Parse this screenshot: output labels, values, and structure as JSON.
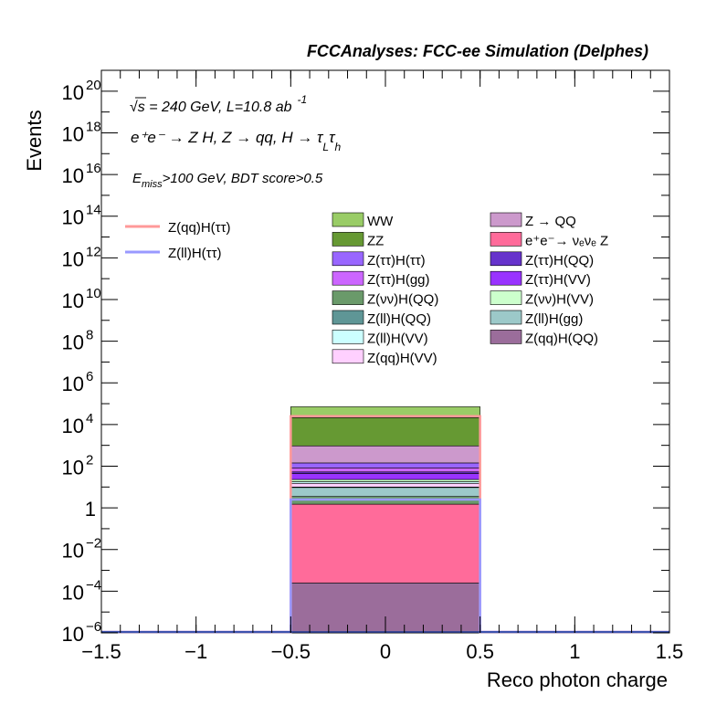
{
  "header": "FCCAnalyses: FCC-ee Simulation (Delphes)",
  "annotations": {
    "energy_lumi": "√s = 240 GeV, L=10.8 ab",
    "lumi_exp": "-1",
    "process_main": "e⁺e⁻ → Z H, Z → qq, H → τ",
    "tau_sub_l": "L",
    "tau_char": "τ",
    "tau_sub_h": "h",
    "cut_e": "E",
    "cut_sub": "miss",
    "cut_rest": ">100 GeV, BDT score>0.5"
  },
  "chart_data": {
    "type": "bar",
    "title": "",
    "xlabel": "Reco photon charge",
    "ylabel": "Events",
    "xlim": [
      -1.5,
      1.5
    ],
    "ylim": [
      1e-06,
      1e+21
    ],
    "yscale": "log",
    "x_ticks": [
      {
        "v": -1.5,
        "label": "−1.5"
      },
      {
        "v": -1,
        "label": "−1"
      },
      {
        "v": -0.5,
        "label": "−0.5"
      },
      {
        "v": 0,
        "label": "0"
      },
      {
        "v": 0.5,
        "label": "0.5"
      },
      {
        "v": 1,
        "label": "1"
      },
      {
        "v": 1.5,
        "label": "1.5"
      }
    ],
    "y_ticks": [
      {
        "exp": -6,
        "base": "10",
        "sup": "−6"
      },
      {
        "exp": -4,
        "base": "10",
        "sup": "−4"
      },
      {
        "exp": -2,
        "base": "10",
        "sup": "−2"
      },
      {
        "exp": 0,
        "base": "1",
        "sup": ""
      },
      {
        "exp": 2,
        "base": "10",
        "sup": "2"
      },
      {
        "exp": 4,
        "base": "10",
        "sup": "4"
      },
      {
        "exp": 6,
        "base": "10",
        "sup": "6"
      },
      {
        "exp": 8,
        "base": "10",
        "sup": "8"
      },
      {
        "exp": 10,
        "base": "10",
        "sup": "10"
      },
      {
        "exp": 12,
        "base": "10",
        "sup": "12"
      },
      {
        "exp": 14,
        "base": "10",
        "sup": "14"
      },
      {
        "exp": 16,
        "base": "10",
        "sup": "16"
      },
      {
        "exp": 18,
        "base": "10",
        "sup": "18"
      },
      {
        "exp": 20,
        "base": "10",
        "sup": "20"
      }
    ],
    "bin": [
      -0.5,
      0.5
    ],
    "stack_bottom_to_top": [
      {
        "name": "Z(qq)H(QQ)",
        "color": "#9b6d9b",
        "value": 0.00025
      },
      {
        "name": "e⁺e⁻→ νₑνₑ Z",
        "color": "#ff6b9a",
        "value": 1.5
      },
      {
        "name": "Z(νν)H(QQ)",
        "color": "#6a9a6a",
        "value": 2.0
      },
      {
        "name": "Z(ll)H(gg)",
        "color": "#9cc9c9",
        "value": 6.0
      },
      {
        "name": "Z(ll)H(QQ)",
        "color": "#5f9696",
        "value": 0.5
      },
      {
        "name": "Z(qq)H(VV)",
        "color": "#ffd0ff",
        "value": 5.0
      },
      {
        "name": "Z(ll)H(VV)",
        "color": "#ccffff",
        "value": 3.0
      },
      {
        "name": "Z(νν)H(VV)",
        "color": "#ccffcc",
        "value": 5.0
      },
      {
        "name": "Z(ττ)H(VV)",
        "color": "#9933ff",
        "value": 22
      },
      {
        "name": "Z(ττ)H(QQ)",
        "color": "#6633cc",
        "value": 8
      },
      {
        "name": "Z(ττ)H(gg)",
        "color": "#cc66ff",
        "value": 30
      },
      {
        "name": "Z(ττ)H(ττ)",
        "color": "#9966ff",
        "value": 60
      },
      {
        "name": "Z → QQ",
        "color": "#cc99cc",
        "value": 800
      },
      {
        "name": "ZZ",
        "color": "#669933",
        "value": 20000
      },
      {
        "name": "WW",
        "color": "#99cc66",
        "value": 50000
      }
    ],
    "stack_edges_color": "#000000",
    "lines": [
      {
        "name": "Z(qq)H(ττ)",
        "color": "#ff9999",
        "value": 25000
      },
      {
        "name": "Z(ll)H(ττ)",
        "color": "#9999ff",
        "value": 2.5
      }
    ],
    "legend_lines": [
      {
        "label": "Z(qq)H(ττ)",
        "color": "#ff9999"
      },
      {
        "label": "Z(ll)H(ττ)",
        "color": "#9999ff"
      }
    ],
    "legend_col1": [
      {
        "label": "WW",
        "color": "#99cc66"
      },
      {
        "label": "ZZ",
        "color": "#669933"
      },
      {
        "label": "Z(ττ)H(ττ)",
        "color": "#9966ff"
      },
      {
        "label": "Z(ττ)H(gg)",
        "color": "#cc66ff"
      },
      {
        "label": "Z(νν)H(QQ)",
        "color": "#6a9a6a"
      },
      {
        "label": "Z(ll)H(QQ)",
        "color": "#5f9696"
      },
      {
        "label": "Z(ll)H(VV)",
        "color": "#ccffff"
      },
      {
        "label": "Z(qq)H(VV)",
        "color": "#ffd0ff"
      }
    ],
    "legend_col2": [
      {
        "label": "Z → QQ",
        "color": "#cc99cc"
      },
      {
        "label": "e⁺e⁻→ νₑνₑ Z",
        "color": "#ff6b9a"
      },
      {
        "label": "Z(ττ)H(QQ)",
        "color": "#6633cc"
      },
      {
        "label": "Z(ττ)H(VV)",
        "color": "#9933ff"
      },
      {
        "label": "Z(νν)H(VV)",
        "color": "#ccffcc"
      },
      {
        "label": "Z(ll)H(gg)",
        "color": "#9cc9c9"
      },
      {
        "label": "Z(qq)H(QQ)",
        "color": "#9b6d9b"
      }
    ]
  }
}
